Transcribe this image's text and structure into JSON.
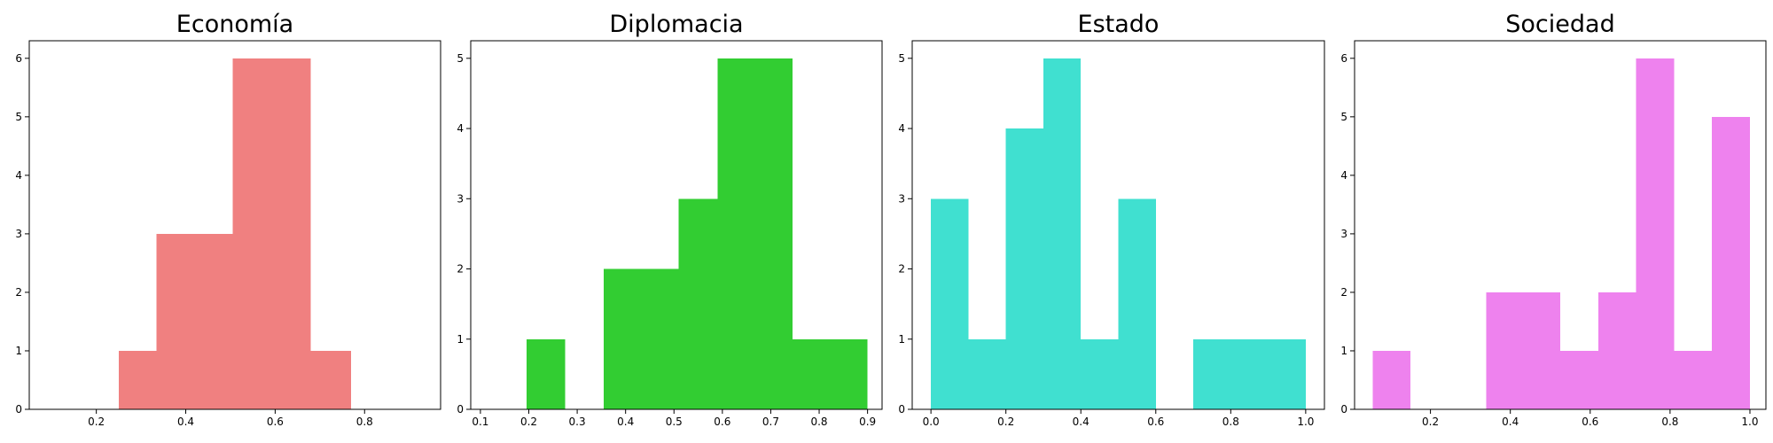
{
  "chart_data": [
    {
      "type": "bar",
      "title": "Economía",
      "color": "#f08080",
      "xlim": [
        0.05,
        0.97
      ],
      "ylim": [
        0,
        6.3
      ],
      "xticks": [
        0.2,
        0.4,
        0.6,
        0.8
      ],
      "xtick_labels": [
        "0.2",
        "0.4",
        "0.6",
        "0.8"
      ],
      "yticks": [
        0,
        1,
        2,
        3,
        4,
        5,
        6
      ],
      "ytick_labels": [
        "0",
        "1",
        "2",
        "3",
        "4",
        "5",
        "6"
      ],
      "bins": [
        {
          "x0": 0.25,
          "x1": 0.335,
          "count": 1
        },
        {
          "x0": 0.335,
          "x1": 0.42,
          "count": 3
        },
        {
          "x0": 0.42,
          "x1": 0.505,
          "count": 3
        },
        {
          "x0": 0.505,
          "x1": 0.59,
          "count": 6
        },
        {
          "x0": 0.59,
          "x1": 0.68,
          "count": 6
        },
        {
          "x0": 0.68,
          "x1": 0.77,
          "count": 1
        }
      ]
    },
    {
      "type": "bar",
      "title": "Diplomacia",
      "color": "#32cd32",
      "xlim": [
        0.08,
        0.93
      ],
      "ylim": [
        0,
        5.25
      ],
      "xticks": [
        0.1,
        0.2,
        0.3,
        0.4,
        0.5,
        0.6,
        0.7,
        0.8,
        0.9
      ],
      "xtick_labels": [
        "0.1",
        "0.2",
        "0.3",
        "0.4",
        "0.5",
        "0.6",
        "0.7",
        "0.8",
        "0.9"
      ],
      "yticks": [
        0,
        1,
        2,
        3,
        4,
        5
      ],
      "ytick_labels": [
        "0",
        "1",
        "2",
        "3",
        "4",
        "5"
      ],
      "bins": [
        {
          "x0": 0.195,
          "x1": 0.275,
          "count": 1
        },
        {
          "x0": 0.355,
          "x1": 0.435,
          "count": 2
        },
        {
          "x0": 0.435,
          "x1": 0.51,
          "count": 2
        },
        {
          "x0": 0.51,
          "x1": 0.59,
          "count": 3
        },
        {
          "x0": 0.59,
          "x1": 0.665,
          "count": 5
        },
        {
          "x0": 0.665,
          "x1": 0.745,
          "count": 5
        },
        {
          "x0": 0.745,
          "x1": 0.82,
          "count": 1
        },
        {
          "x0": 0.82,
          "x1": 0.9,
          "count": 1
        }
      ]
    },
    {
      "type": "bar",
      "title": "Estado",
      "color": "#40e0d0",
      "xlim": [
        -0.05,
        1.05
      ],
      "ylim": [
        0,
        5.25
      ],
      "xticks": [
        0.0,
        0.2,
        0.4,
        0.6,
        0.8,
        1.0
      ],
      "xtick_labels": [
        "0.0",
        "0.2",
        "0.4",
        "0.6",
        "0.8",
        "1.0"
      ],
      "yticks": [
        0,
        1,
        2,
        3,
        4,
        5
      ],
      "ytick_labels": [
        "0",
        "1",
        "2",
        "3",
        "4",
        "5"
      ],
      "bins": [
        {
          "x0": 0.0,
          "x1": 0.1,
          "count": 3
        },
        {
          "x0": 0.1,
          "x1": 0.2,
          "count": 1
        },
        {
          "x0": 0.2,
          "x1": 0.3,
          "count": 4
        },
        {
          "x0": 0.3,
          "x1": 0.4,
          "count": 5
        },
        {
          "x0": 0.4,
          "x1": 0.5,
          "count": 1
        },
        {
          "x0": 0.5,
          "x1": 0.6,
          "count": 3
        },
        {
          "x0": 0.7,
          "x1": 0.8,
          "count": 1
        },
        {
          "x0": 0.8,
          "x1": 0.9,
          "count": 1
        },
        {
          "x0": 0.9,
          "x1": 1.0,
          "count": 1
        }
      ]
    },
    {
      "type": "bar",
      "title": "Sociedad",
      "color": "#ee82ee",
      "xlim": [
        0.01,
        1.04
      ],
      "ylim": [
        0,
        6.3
      ],
      "xticks": [
        0.2,
        0.4,
        0.6,
        0.8,
        1.0
      ],
      "xtick_labels": [
        "0.2",
        "0.4",
        "0.6",
        "0.8",
        "1.0"
      ],
      "yticks": [
        0,
        1,
        2,
        3,
        4,
        5,
        6
      ],
      "ytick_labels": [
        "0",
        "1",
        "2",
        "3",
        "4",
        "5",
        "6"
      ],
      "bins": [
        {
          "x0": 0.055,
          "x1": 0.15,
          "count": 1
        },
        {
          "x0": 0.34,
          "x1": 0.435,
          "count": 2
        },
        {
          "x0": 0.435,
          "x1": 0.525,
          "count": 2
        },
        {
          "x0": 0.525,
          "x1": 0.62,
          "count": 1
        },
        {
          "x0": 0.62,
          "x1": 0.715,
          "count": 2
        },
        {
          "x0": 0.715,
          "x1": 0.81,
          "count": 6
        },
        {
          "x0": 0.81,
          "x1": 0.905,
          "count": 1
        },
        {
          "x0": 0.905,
          "x1": 1.0,
          "count": 5
        }
      ]
    }
  ]
}
